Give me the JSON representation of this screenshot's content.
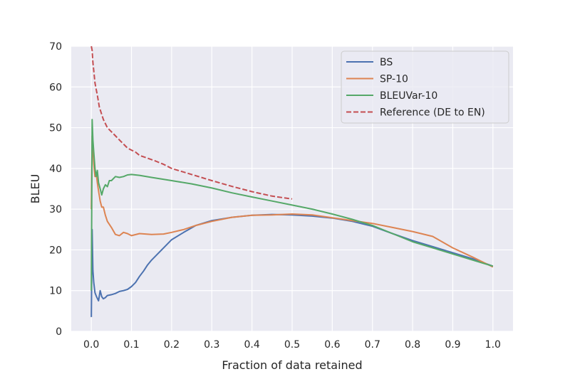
{
  "chart_data": {
    "type": "line",
    "title": "",
    "xlabel": "Fraction of data retained",
    "ylabel": "BLEU",
    "xlim": [
      -0.05,
      1.05
    ],
    "ylim": [
      0,
      70
    ],
    "xticks": [
      "0.0",
      "0.1",
      "0.2",
      "0.3",
      "0.4",
      "0.5",
      "0.6",
      "0.7",
      "0.8",
      "0.9",
      "1.0"
    ],
    "yticks": [
      "0",
      "10",
      "20",
      "30",
      "40",
      "50",
      "60",
      "70"
    ],
    "grid": true,
    "background": "#eaeaf2",
    "legend_position": "top-right",
    "series": [
      {
        "name": "BS",
        "color": "#4c72b0",
        "style": "solid",
        "x": [
          0.0,
          0.002,
          0.004,
          0.006,
          0.009,
          0.013,
          0.018,
          0.022,
          0.026,
          0.03,
          0.035,
          0.04,
          0.05,
          0.06,
          0.07,
          0.08,
          0.09,
          0.1,
          0.11,
          0.12,
          0.13,
          0.14,
          0.15,
          0.17,
          0.2,
          0.23,
          0.26,
          0.3,
          0.35,
          0.4,
          0.45,
          0.5,
          0.55,
          0.6,
          0.65,
          0.7,
          0.75,
          0.8,
          0.85,
          0.9,
          0.95,
          1.0
        ],
        "y": [
          3.5,
          25,
          15,
          12,
          9.5,
          8.5,
          7.5,
          10,
          8.5,
          8,
          8.3,
          8.8,
          9,
          9.3,
          9.8,
          10,
          10.3,
          11,
          12,
          13.5,
          14.8,
          16.3,
          17.5,
          19.5,
          22.5,
          24.3,
          26,
          27.2,
          28,
          28.5,
          28.7,
          28.6,
          28.3,
          27.8,
          27,
          25.8,
          24,
          22.3,
          20.8,
          19.3,
          17.8,
          16
        ]
      },
      {
        "name": "SP-10",
        "color": "#dd8452",
        "style": "solid",
        "x": [
          0.0,
          0.002,
          0.004,
          0.006,
          0.009,
          0.012,
          0.015,
          0.018,
          0.022,
          0.026,
          0.03,
          0.035,
          0.04,
          0.05,
          0.06,
          0.07,
          0.08,
          0.09,
          0.1,
          0.12,
          0.15,
          0.18,
          0.2,
          0.23,
          0.26,
          0.3,
          0.35,
          0.4,
          0.45,
          0.5,
          0.55,
          0.6,
          0.65,
          0.7,
          0.75,
          0.8,
          0.85,
          0.9,
          0.95,
          1.0
        ],
        "y": [
          30,
          48,
          45,
          41,
          38,
          39,
          36.5,
          34.5,
          32,
          30.5,
          30.5,
          28.5,
          27,
          25.5,
          23.8,
          23.5,
          24.3,
          24,
          23.5,
          24,
          23.8,
          23.9,
          24.3,
          25,
          26,
          27,
          28,
          28.5,
          28.6,
          28.8,
          28.6,
          27.9,
          27.2,
          26.5,
          25.5,
          24.5,
          23.3,
          20.5,
          18.2,
          15.8
        ]
      },
      {
        "name": "BLEUVar-10",
        "color": "#55a868",
        "style": "solid",
        "x": [
          0.0,
          0.002,
          0.004,
          0.006,
          0.009,
          0.012,
          0.015,
          0.018,
          0.022,
          0.026,
          0.03,
          0.035,
          0.04,
          0.045,
          0.05,
          0.06,
          0.07,
          0.08,
          0.09,
          0.1,
          0.12,
          0.15,
          0.2,
          0.25,
          0.3,
          0.35,
          0.4,
          0.45,
          0.5,
          0.55,
          0.6,
          0.65,
          0.7,
          0.75,
          0.8,
          0.85,
          0.9,
          0.95,
          1.0
        ],
        "y": [
          10,
          52,
          47,
          44,
          40,
          38,
          39.5,
          36.5,
          35,
          33.5,
          35,
          36,
          35.5,
          37,
          37,
          38,
          37.8,
          38,
          38.4,
          38.5,
          38.3,
          37.8,
          37,
          36.2,
          35.2,
          34,
          33,
          32,
          31,
          30,
          28.8,
          27.5,
          26,
          24,
          22,
          20.5,
          19,
          17.5,
          16
        ]
      },
      {
        "name": "Reference (DE to EN)",
        "color": "#c44e52",
        "style": "dashed",
        "x": [
          0.0,
          0.002,
          0.004,
          0.006,
          0.009,
          0.012,
          0.015,
          0.02,
          0.025,
          0.03,
          0.04,
          0.05,
          0.06,
          0.07,
          0.08,
          0.09,
          0.1,
          0.11,
          0.12,
          0.14,
          0.16,
          0.18,
          0.2,
          0.25,
          0.3,
          0.35,
          0.4,
          0.45,
          0.5
        ],
        "y": [
          70,
          69,
          66,
          64,
          61,
          59.5,
          58,
          55,
          53.5,
          52,
          50,
          49,
          48,
          47,
          46,
          45,
          44.5,
          44,
          43.2,
          42.5,
          41.8,
          41,
          40,
          38.5,
          37,
          35.6,
          34.3,
          33.2,
          32.5
        ]
      }
    ]
  }
}
